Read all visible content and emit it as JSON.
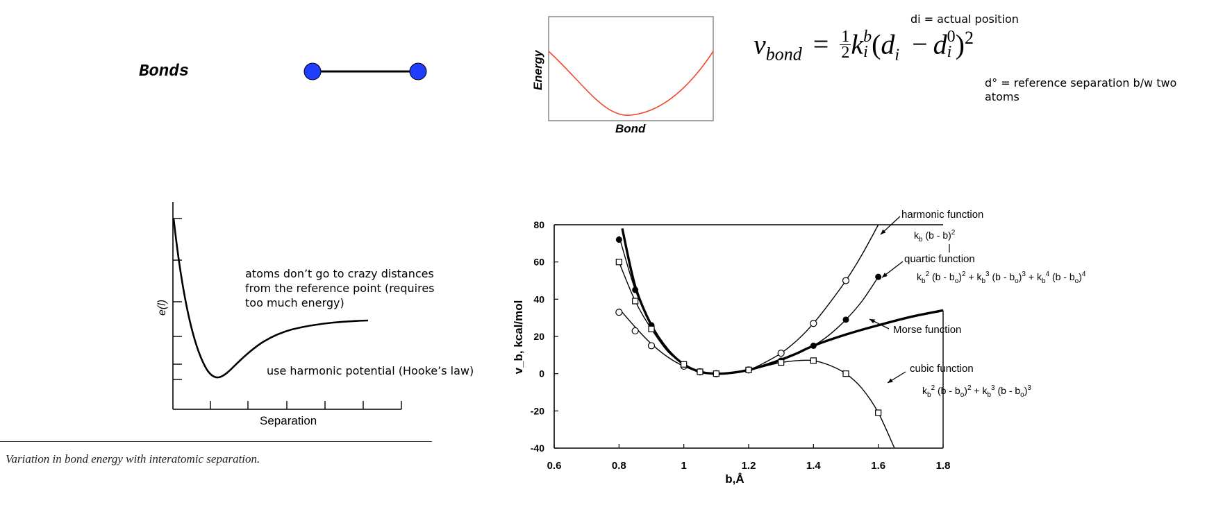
{
  "top": {
    "bonds_label": "Bonds",
    "mini_plot": {
      "ylabel": "Energy",
      "xlabel": "Bond"
    },
    "formula": {
      "v": "v",
      "bond": "bond",
      "eq": "=",
      "half_num": "1",
      "half_den": "2",
      "k": "k",
      "k_sup": "b",
      "k_sub": "i",
      "open": "(",
      "d1": "d",
      "d1_sub": "i",
      "minus": "−",
      "d2": "d",
      "d2_sup": "0",
      "d2_sub": "i",
      "close": ")",
      "power": "2"
    },
    "note_actual": "di = actual position",
    "note_reference": "d° = reference separation b/w two atoms"
  },
  "left_plot": {
    "ylabel": "e(l)",
    "xlabel": "Separation",
    "annotation_1": "atoms don’t go to crazy distances from the reference point (requires too much energy)",
    "annotation_2": "use harmonic potential (Hooke’s law)",
    "caption": "Variation in bond energy with interatomic separation."
  },
  "chart_data": {
    "type": "line",
    "xlabel": "b,Å",
    "ylabel": "v_b, kcal/mol",
    "xlim": [
      0.6,
      1.8
    ],
    "ylim": [
      -40,
      80
    ],
    "x_ticks": [
      "0.6",
      "0.8",
      "1",
      "1.2",
      "1.4",
      "1.6",
      "1.8"
    ],
    "y_ticks": [
      "80",
      "60",
      "40",
      "20",
      "0",
      "-20",
      "-40"
    ],
    "series": [
      {
        "name": "harmonic function",
        "formula": "k_b (b - b)^2",
        "marker": "open-circle",
        "x": [
          0.8,
          0.85,
          0.9,
          1.0,
          1.05,
          1.1,
          1.2,
          1.3,
          1.4,
          1.5
        ],
        "y": [
          33,
          23,
          15,
          4,
          1,
          0,
          2,
          11,
          27,
          50
        ],
        "curve_x": [
          0.8,
          0.85,
          0.9,
          0.95,
          1.0,
          1.05,
          1.1,
          1.15,
          1.2,
          1.25,
          1.3,
          1.35,
          1.4,
          1.45,
          1.5,
          1.55,
          1.6
        ],
        "curve_y": [
          35,
          25,
          16,
          9,
          4,
          1,
          0,
          0.5,
          2,
          6,
          11,
          18,
          27,
          38,
          50,
          64,
          80
        ]
      },
      {
        "name": "quartic function",
        "formula": "k_b^2 (b - b_o)^2 + k_b^3 (b - b_o)^3 + k_b^4 (b - b_o)^4",
        "marker": "filled-circle",
        "x": [
          0.8,
          0.85,
          0.9,
          1.0,
          1.05,
          1.1,
          1.2,
          1.3,
          1.4,
          1.5,
          1.6
        ],
        "y": [
          72,
          45,
          26,
          5,
          1,
          0,
          2,
          7,
          15,
          29,
          52
        ],
        "curve_x": [
          0.8,
          0.85,
          0.9,
          0.95,
          1.0,
          1.05,
          1.1,
          1.15,
          1.2,
          1.25,
          1.3,
          1.35,
          1.4,
          1.45,
          1.5,
          1.55,
          1.6
        ],
        "curve_y": [
          74,
          45,
          26,
          13,
          5,
          1,
          0,
          0.5,
          2,
          4,
          7,
          11,
          15,
          21,
          29,
          39,
          52
        ]
      },
      {
        "name": "Morse function",
        "formula": "",
        "marker": "none",
        "curve_x": [
          0.81,
          0.85,
          0.9,
          0.95,
          1.0,
          1.05,
          1.1,
          1.15,
          1.2,
          1.25,
          1.3,
          1.35,
          1.4,
          1.5,
          1.6,
          1.7,
          1.8
        ],
        "curve_y": [
          78,
          47,
          26,
          13,
          5,
          1,
          0,
          0.5,
          2,
          4.5,
          7.5,
          11,
          15,
          21,
          26,
          30.5,
          34
        ]
      },
      {
        "name": "cubic function",
        "formula": "k_b^2 (b - b_o)^2 + k_b^3 (b - b_o)^3",
        "marker": "open-square",
        "x": [
          0.8,
          0.85,
          0.9,
          1.0,
          1.05,
          1.1,
          1.2,
          1.3,
          1.4,
          1.5,
          1.6
        ],
        "y": [
          60,
          39,
          24,
          5,
          1,
          0,
          2,
          6,
          7,
          0,
          -21
        ],
        "curve_x": [
          0.8,
          0.85,
          0.9,
          0.95,
          1.0,
          1.05,
          1.1,
          1.15,
          1.2,
          1.25,
          1.3,
          1.35,
          1.4,
          1.45,
          1.5,
          1.55,
          1.6,
          1.65
        ],
        "curve_y": [
          60,
          39,
          24,
          12,
          5,
          1,
          0,
          0.5,
          2,
          4,
          6,
          7,
          7,
          4.5,
          0,
          -8,
          -21,
          -40
        ]
      }
    ],
    "labels": {
      "harmonic": "harmonic function",
      "harmonic_formula": "k_b (b - b)^2",
      "quartic": "quartic function",
      "morse": "Morse function",
      "cubic": "cubic function"
    }
  }
}
